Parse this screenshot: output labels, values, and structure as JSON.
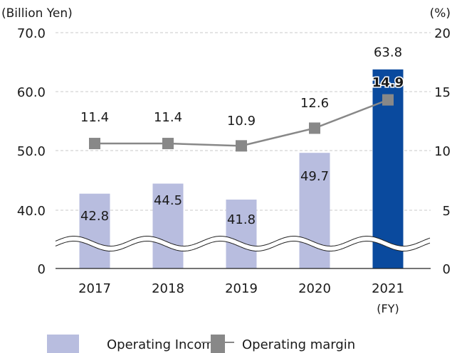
{
  "chart_data": {
    "type": "bar",
    "title": "",
    "left_unit": "(Billion Yen)",
    "right_unit": "(%)",
    "categories": [
      "2017",
      "2018",
      "2019",
      "2020",
      "2021"
    ],
    "x_suffix_label": "(FY)",
    "left_ticks": [
      "0",
      "40.0",
      "50.0",
      "60.0",
      "70.0"
    ],
    "right_ticks": [
      "0",
      "5",
      "10",
      "15",
      "20"
    ],
    "left_axis_break": "0 to 35 (wavy break)",
    "grid": true,
    "series": [
      {
        "name": "Operating Income",
        "type": "bar",
        "axis": "left",
        "values": [
          42.8,
          44.5,
          41.8,
          49.7,
          63.8
        ],
        "labels": [
          "42.8",
          "44.5",
          "41.8",
          "49.7",
          "63.8"
        ],
        "color": "#b8bddf",
        "highlight_color": "#0a4a9e",
        "highlight_index": 4
      },
      {
        "name": "Operating margin",
        "type": "line",
        "axis": "right",
        "values": [
          11.4,
          11.4,
          10.9,
          12.6,
          14.9
        ],
        "labels": [
          "11.4",
          "11.4",
          "10.9",
          "12.6",
          "14.9"
        ],
        "color": "#888888"
      }
    ],
    "legend": {
      "position": "bottom",
      "items": [
        "Operating Income",
        "Operating margin"
      ]
    }
  }
}
